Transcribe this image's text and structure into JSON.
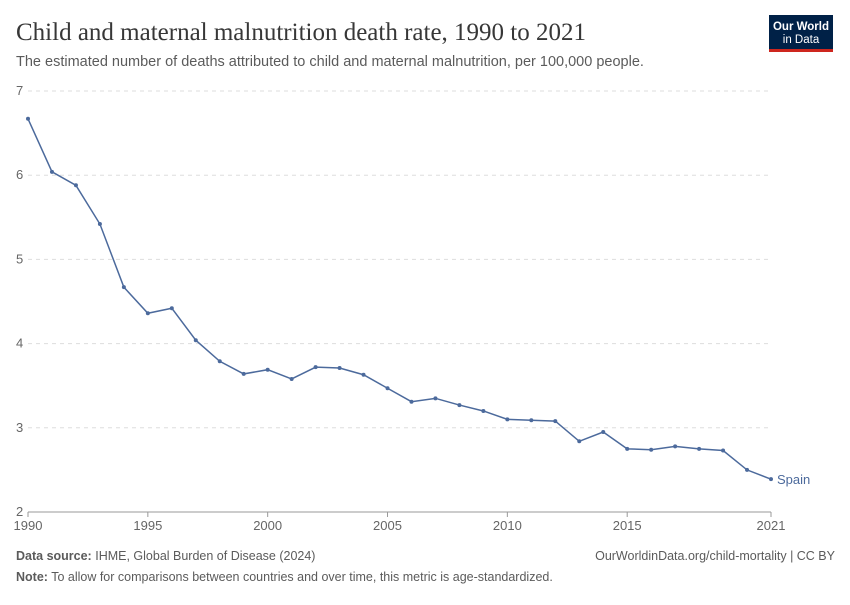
{
  "chart_data": {
    "type": "line",
    "title": "Child and maternal malnutrition death rate, 1990 to 2021",
    "subtitle": "The estimated number of deaths attributed to child and maternal malnutrition, per 100,000 people.",
    "logo": [
      "Our World",
      "in Data"
    ],
    "source_label": "Data source:",
    "source_text": "IHME, Global Burden of Disease (2024)",
    "url": "OurWorldinData.org/child-mortality | CC BY",
    "note_label": "Note:",
    "note_text": "To allow for comparisons between countries and over time, this metric is age-standardized.",
    "x": [
      1990,
      1991,
      1992,
      1993,
      1994,
      1995,
      1996,
      1997,
      1998,
      1999,
      2000,
      2001,
      2002,
      2003,
      2004,
      2005,
      2006,
      2007,
      2008,
      2009,
      2010,
      2011,
      2012,
      2013,
      2014,
      2015,
      2016,
      2017,
      2018,
      2019,
      2020,
      2021
    ],
    "series": [
      {
        "name": "Spain",
        "color": "#4c6a9c",
        "values": [
          6.67,
          6.04,
          5.88,
          5.42,
          4.67,
          4.36,
          4.42,
          4.04,
          3.79,
          3.64,
          3.69,
          3.58,
          3.72,
          3.71,
          3.63,
          3.47,
          3.31,
          3.35,
          3.27,
          3.2,
          3.1,
          3.09,
          3.08,
          2.84,
          2.95,
          2.75,
          2.74,
          2.78,
          2.75,
          2.73,
          2.5,
          2.39
        ]
      }
    ],
    "xlim": [
      1990,
      2021
    ],
    "xticks": [
      1990,
      1995,
      2000,
      2005,
      2010,
      2015,
      2021
    ],
    "ylim": [
      2,
      7
    ],
    "yticks": [
      2,
      3,
      4,
      5,
      6,
      7
    ],
    "grid": true
  }
}
